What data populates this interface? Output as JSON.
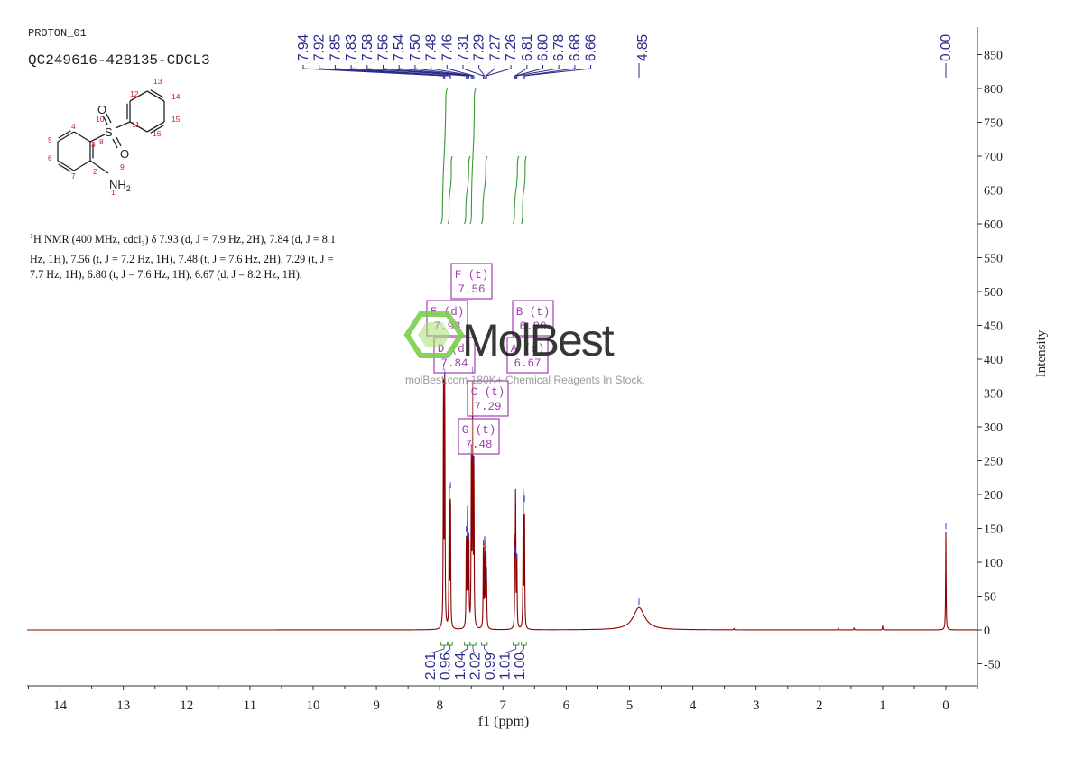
{
  "header": {
    "experiment": "PROTON_01",
    "sample": "QC249616-428135-CDCL3"
  },
  "description": {
    "nucleus_sup": "1",
    "text": "H NMR (400 MHz, cdcl",
    "solvent_sub": "3",
    "text2": ") δ 7.93 (d, J = 7.9 Hz, 2H), 7.84 (d, J = 8.1 Hz, 1H), 7.56 (t, J = 7.2 Hz, 1H), 7.48 (t, J = 7.6 Hz, 2H), 7.29 (t, J = 7.7 Hz, 1H), 6.80 (t, J = 7.6 Hz, 1H), 6.67 (d, J = 8.2 Hz, 1H)."
  },
  "structure": {
    "atoms": [
      "1",
      "2",
      "3",
      "4",
      "5",
      "6",
      "7",
      "8",
      "9",
      "10",
      "11",
      "12",
      "13",
      "14",
      "15",
      "16"
    ],
    "heteroatoms": {
      "S": "S",
      "O_top": "O",
      "O_bottom": "O",
      "N": "NH",
      "N_sub": "2"
    }
  },
  "watermark": {
    "brand": "MolBest",
    "tagline": "molBest.com 180K+ Chemical Reagents In Stock."
  },
  "colors": {
    "spectrum": "#8b0000",
    "integral": "#3a9a3a",
    "peak_label": "#2a2a8a",
    "multiplet_box": "#a040b0",
    "atom_label": "#d02020"
  },
  "chart_data": {
    "type": "line",
    "xlabel": "f1 (ppm)",
    "ylabel": "Intensity",
    "xlim": [
      14.5,
      -0.5
    ],
    "ylim": [
      -80,
      880
    ],
    "x_ticks": [
      14,
      13,
      12,
      11,
      10,
      9,
      8,
      7,
      6,
      5,
      4,
      3,
      2,
      1,
      0
    ],
    "y_ticks": [
      -50,
      0,
      50,
      100,
      150,
      200,
      250,
      300,
      350,
      400,
      450,
      500,
      550,
      600,
      650,
      700,
      750,
      800,
      850
    ],
    "peaks": [
      {
        "ppm": 7.94,
        "height": 380
      },
      {
        "ppm": 7.92,
        "height": 372
      },
      {
        "ppm": 7.85,
        "height": 200
      },
      {
        "ppm": 7.83,
        "height": 205
      },
      {
        "ppm": 7.58,
        "height": 140
      },
      {
        "ppm": 7.56,
        "height": 170
      },
      {
        "ppm": 7.54,
        "height": 130
      },
      {
        "ppm": 7.5,
        "height": 250
      },
      {
        "ppm": 7.48,
        "height": 375
      },
      {
        "ppm": 7.46,
        "height": 240
      },
      {
        "ppm": 7.31,
        "height": 120
      },
      {
        "ppm": 7.29,
        "height": 125
      },
      {
        "ppm": 7.27,
        "height": 110
      },
      {
        "ppm": 7.26,
        "height": 70
      },
      {
        "ppm": 6.81,
        "height": 110
      },
      {
        "ppm": 6.8,
        "height": 190
      },
      {
        "ppm": 6.78,
        "height": 100
      },
      {
        "ppm": 6.68,
        "height": 195
      },
      {
        "ppm": 6.66,
        "height": 185
      },
      {
        "ppm": 4.85,
        "height": 33,
        "broad": true
      },
      {
        "ppm": 0.0,
        "height": 145
      }
    ],
    "minor_peaks": [
      {
        "ppm": 3.35,
        "height": 2
      },
      {
        "ppm": 1.7,
        "height": 3
      },
      {
        "ppm": 1.45,
        "height": 3
      },
      {
        "ppm": 1.0,
        "height": 6
      }
    ],
    "peak_labels": [
      "7.94",
      "7.92",
      "7.85",
      "7.83",
      "7.58",
      "7.56",
      "7.54",
      "7.50",
      "7.48",
      "7.46",
      "7.31",
      "7.29",
      "7.27",
      "7.26",
      "6.81",
      "6.80",
      "6.78",
      "6.68",
      "6.66",
      "4.85",
      "0.00"
    ],
    "peak_label_ppm": [
      7.94,
      7.92,
      7.85,
      7.83,
      7.58,
      7.56,
      7.54,
      7.5,
      7.48,
      7.46,
      7.31,
      7.29,
      7.27,
      7.26,
      6.81,
      6.8,
      6.78,
      6.68,
      6.66,
      4.85,
      0.0
    ],
    "integrals": [
      {
        "from": 7.98,
        "to": 7.88,
        "value": "2.01",
        "top": 800,
        "bottom": 600
      },
      {
        "from": 7.87,
        "to": 7.8,
        "value": "0.96",
        "top": 700,
        "bottom": 600
      },
      {
        "from": 7.61,
        "to": 7.52,
        "value": "1.04",
        "top": 700,
        "bottom": 600
      },
      {
        "from": 7.52,
        "to": 7.43,
        "value": "2.02",
        "top": 800,
        "bottom": 600
      },
      {
        "from": 7.34,
        "to": 7.25,
        "value": "0.99",
        "top": 700,
        "bottom": 600
      },
      {
        "from": 6.84,
        "to": 6.75,
        "value": "1.01",
        "top": 700,
        "bottom": 600
      },
      {
        "from": 6.71,
        "to": 6.63,
        "value": "1.00",
        "top": 700,
        "bottom": 600
      }
    ],
    "multiplets": [
      {
        "letter": "F",
        "mult": "(t)",
        "shift": "7.56"
      },
      {
        "letter": "E",
        "mult": "(d)",
        "shift": "7.93"
      },
      {
        "letter": "B",
        "mult": "(t)",
        "shift": "6.80"
      },
      {
        "letter": "D",
        "mult": "(d)",
        "shift": "7.84"
      },
      {
        "letter": "A",
        "mult": "(d)",
        "shift": "6.67"
      },
      {
        "letter": "C",
        "mult": "(t)",
        "shift": "7.29"
      },
      {
        "letter": "G",
        "mult": "(t)",
        "shift": "7.48"
      }
    ]
  }
}
